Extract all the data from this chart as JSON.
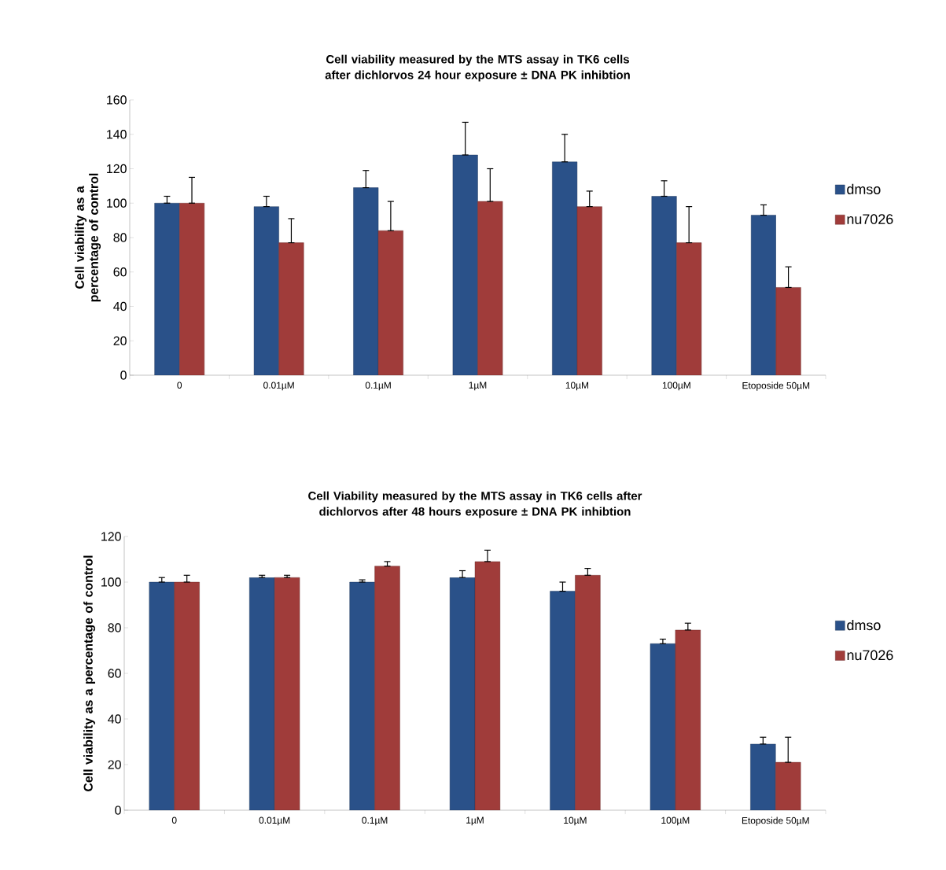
{
  "chart_data": [
    {
      "type": "bar",
      "title": "Cell viability measured by the MTS assay in TK6 cells after dichlorvos 24 hour exposure ± DNA PK inhibtion",
      "ylabel": "Cell viability as a percentage of control",
      "categories": [
        "0",
        "0.01µM",
        "0.1µM",
        "1µM",
        "10µM",
        "100µM",
        "Etoposide 50µM"
      ],
      "series": [
        {
          "name": "dmso",
          "color": "#2a5189",
          "values": [
            100,
            98,
            109,
            128,
            124,
            104,
            93
          ],
          "errors": [
            [
              100,
              104
            ],
            [
              98,
              104
            ],
            [
              109,
              119
            ],
            [
              128,
              147
            ],
            [
              124,
              140
            ],
            [
              104,
              113
            ],
            [
              93,
              99
            ]
          ]
        },
        {
          "name": "nu7026",
          "color": "#a03c3a",
          "values": [
            100,
            77,
            84,
            101,
            98,
            77,
            51
          ],
          "errors": [
            [
              100,
              115
            ],
            [
              77,
              91
            ],
            [
              84,
              101
            ],
            [
              101,
              120
            ],
            [
              98,
              107
            ],
            [
              77,
              98
            ],
            [
              51,
              63
            ]
          ]
        }
      ],
      "ylim": [
        0,
        160
      ],
      "yticks": [
        0,
        20,
        40,
        60,
        80,
        100,
        120,
        140,
        160
      ],
      "legend": "right",
      "grid": false
    },
    {
      "type": "bar",
      "title": "Cell Viability measured by the MTS assay in TK6 cells after dichlorvos after 48  hours exposure ± DNA PK inhibtion",
      "ylabel": "Cell viability as a percentage of control",
      "categories": [
        "0",
        "0.01µM",
        "0.1µM",
        "1µM",
        "10µM",
        "100µM",
        "Etoposide 50µM"
      ],
      "series": [
        {
          "name": "dmso",
          "color": "#2a5189",
          "values": [
            100,
            102,
            100,
            102,
            96,
            73,
            29
          ],
          "errors": [
            [
              100,
              102
            ],
            [
              102,
              103
            ],
            [
              100,
              101
            ],
            [
              102,
              105
            ],
            [
              96,
              100
            ],
            [
              73,
              75
            ],
            [
              29,
              32
            ]
          ]
        },
        {
          "name": "nu7026",
          "color": "#a03c3a",
          "values": [
            100,
            102,
            107,
            109,
            103,
            79,
            21
          ],
          "errors": [
            [
              100,
              103
            ],
            [
              102,
              103
            ],
            [
              107,
              109
            ],
            [
              109,
              114
            ],
            [
              103,
              106
            ],
            [
              79,
              82
            ],
            [
              21,
              32
            ]
          ]
        }
      ],
      "ylim": [
        0,
        120
      ],
      "yticks": [
        0,
        20,
        40,
        60,
        80,
        100,
        120
      ],
      "legend": "right",
      "grid": false
    }
  ]
}
